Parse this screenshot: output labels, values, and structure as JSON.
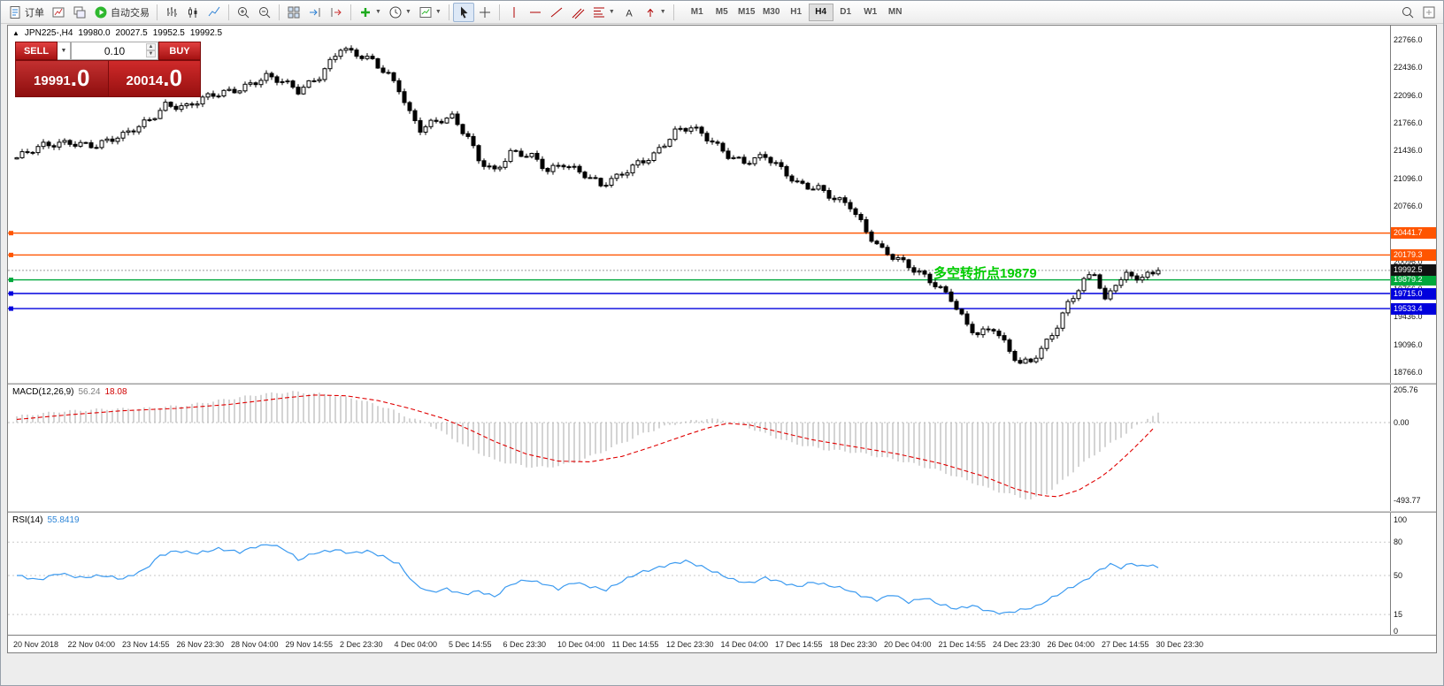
{
  "toolbar": {
    "items": [
      {
        "name": "new-order",
        "icon": "doc",
        "label": "订单"
      },
      {
        "name": "new-chart",
        "icon": "chartwin"
      },
      {
        "name": "profiles",
        "icon": "cascade"
      },
      {
        "name": "auto-trading",
        "icon": "play",
        "label": "自动交易"
      },
      {
        "sep": true
      },
      {
        "name": "bar-chart",
        "icon": "bars"
      },
      {
        "name": "candlestick-chart",
        "icon": "candles"
      },
      {
        "name": "line-chart",
        "icon": "linechart"
      },
      {
        "sep": true
      },
      {
        "name": "zoom-in",
        "icon": "zoomin"
      },
      {
        "name": "zoom-out",
        "icon": "zoomout"
      },
      {
        "sep": true
      },
      {
        "name": "tile-windows",
        "icon": "tile"
      },
      {
        "name": "auto-scroll",
        "icon": "autoscroll"
      },
      {
        "name": "chart-shift",
        "icon": "chartshift"
      },
      {
        "sep": true
      },
      {
        "name": "add-indicator",
        "icon": "plus",
        "dropdown": true
      },
      {
        "name": "periods",
        "icon": "clock",
        "dropdown": true
      },
      {
        "name": "templates",
        "icon": "template",
        "dropdown": true
      },
      {
        "sep": true
      },
      {
        "name": "cursor-tool",
        "icon": "cursor",
        "active": true
      },
      {
        "name": "crosshair-tool",
        "icon": "crosshair"
      },
      {
        "sep": true
      },
      {
        "name": "vertical-line-tool",
        "icon": "vline"
      },
      {
        "name": "horizontal-line-tool",
        "icon": "hline"
      },
      {
        "name": "trendline-tool",
        "icon": "trend"
      },
      {
        "name": "channel-tool",
        "icon": "channel"
      },
      {
        "name": "fibonacci-tool",
        "icon": "fib",
        "dropdown": true
      },
      {
        "name": "text-tool",
        "icon": "textA"
      },
      {
        "name": "arrows-tool",
        "icon": "arrow",
        "dropdown": true
      },
      {
        "sep": true
      }
    ],
    "timeframes": [
      {
        "label": "M1"
      },
      {
        "label": "M5"
      },
      {
        "label": "M15"
      },
      {
        "label": "M30"
      },
      {
        "label": "H1"
      },
      {
        "label": "H4",
        "active": true
      },
      {
        "label": "D1"
      },
      {
        "label": "W1"
      },
      {
        "label": "MN"
      }
    ],
    "right_items": [
      {
        "name": "search",
        "icon": "search"
      },
      {
        "name": "data-window",
        "icon": "expert"
      }
    ]
  },
  "chart": {
    "info": {
      "marker": "▲",
      "symbol": "JPN225-,H4",
      "open": "19980.0",
      "high": "20027.5",
      "low": "19952.5",
      "close": "19992.5"
    },
    "trade_panel": {
      "sell_label": "SELL",
      "buy_label": "BUY",
      "volume": "0.10",
      "sell_price": "19991",
      "sell_price_big": ".0",
      "buy_price": "20014",
      "buy_price_big": ".0",
      "spin_up": "▲",
      "spin_down": "▼",
      "dropdown": "▼"
    },
    "annotation": {
      "text": "多空转折点19879",
      "color": "#00cc00"
    },
    "axis_prices": [
      "22766.0",
      "22436.0",
      "22096.0",
      "21766.0",
      "21436.0",
      "21096.0",
      "20766.0",
      "20436.0",
      "20096.0",
      "19766.0",
      "19436.0",
      "19096.0",
      "18766.0"
    ],
    "price_lines": [
      {
        "name": "resistance-line-1",
        "price": 20441.7,
        "label": "20441.7",
        "color": "#ff5500"
      },
      {
        "name": "resistance-line-2",
        "price": 20179.3,
        "label": "20179.3",
        "color": "#ff5500"
      },
      {
        "name": "pivot-line",
        "price": 19879.2,
        "label": "19879.2",
        "color": "#00a83c"
      },
      {
        "name": "support-line-1",
        "price": 19715.0,
        "label": "19715.0",
        "color": "#0000dd"
      },
      {
        "name": "support-line-2",
        "price": 19533.4,
        "label": "19533.4",
        "color": "#0000dd"
      }
    ],
    "current_price": {
      "label": "19992.5",
      "value": 19992.5,
      "badge_color": "#111111"
    }
  },
  "macd": {
    "label": "MACD(12,26,9)",
    "value_main": "56.24",
    "value_signal": "18.08",
    "scale": [
      205.76,
      0.0,
      -493.77
    ],
    "scale_text": [
      "205.76",
      "0.00",
      "-493.77"
    ]
  },
  "rsi": {
    "label": "RSI(14)",
    "value": "55.8419",
    "scale": [
      100,
      80,
      50,
      15,
      0
    ],
    "scale_text": [
      "100",
      "80",
      "50",
      "15",
      "0"
    ],
    "levels": [
      80,
      50,
      15
    ]
  },
  "time_axis": {
    "labels": [
      "20 Nov 2018",
      "22 Nov 04:00",
      "23 Nov 14:55",
      "26 Nov 23:30",
      "28 Nov 04:00",
      "29 Nov 14:55",
      "2 Dec 23:30",
      "4 Dec 04:00",
      "5 Dec 14:55",
      "6 Dec 23:30",
      "10 Dec 04:00",
      "11 Dec 14:55",
      "12 Dec 23:30",
      "14 Dec 04:00",
      "17 Dec 14:55",
      "18 Dec 23:30",
      "20 Dec 04:00",
      "21 Dec 14:55",
      "24 Dec 23:30",
      "26 Dec 04:00",
      "27 Dec 14:55",
      "30 Dec 23:30"
    ]
  },
  "chart_data": {
    "type": "candlestick",
    "symbol": "JPN225",
    "timeframe": "H4",
    "last_ohlc": {
      "open": 19980.0,
      "high": 20027.5,
      "low": 19952.5,
      "close": 19992.5
    },
    "y_range": [
      18640,
      22940
    ],
    "candle_count": 216,
    "close_waypoints": [
      [
        0,
        21350
      ],
      [
        5,
        21480
      ],
      [
        10,
        21550
      ],
      [
        15,
        21500
      ],
      [
        20,
        21600
      ],
      [
        25,
        21820
      ],
      [
        28,
        22000
      ],
      [
        32,
        21950
      ],
      [
        37,
        22100
      ],
      [
        42,
        22200
      ],
      [
        47,
        22320
      ],
      [
        50,
        22250
      ],
      [
        53,
        22150
      ],
      [
        57,
        22350
      ],
      [
        61,
        22680
      ],
      [
        63,
        22600
      ],
      [
        67,
        22500
      ],
      [
        70,
        22350
      ],
      [
        72,
        22200
      ],
      [
        74,
        21900
      ],
      [
        76,
        21700
      ],
      [
        78,
        21750
      ],
      [
        82,
        21820
      ],
      [
        85,
        21600
      ],
      [
        87,
        21350
      ],
      [
        90,
        21200
      ],
      [
        93,
        21400
      ],
      [
        97,
        21350
      ],
      [
        100,
        21200
      ],
      [
        103,
        21300
      ],
      [
        107,
        21150
      ],
      [
        110,
        21000
      ],
      [
        113,
        21100
      ],
      [
        117,
        21300
      ],
      [
        120,
        21400
      ],
      [
        124,
        21650
      ],
      [
        127,
        21700
      ],
      [
        131,
        21550
      ],
      [
        134,
        21400
      ],
      [
        137,
        21300
      ],
      [
        141,
        21350
      ],
      [
        144,
        21200
      ],
      [
        147,
        21050
      ],
      [
        151,
        21000
      ],
      [
        154,
        20850
      ],
      [
        157,
        20750
      ],
      [
        160,
        20450
      ],
      [
        163,
        20250
      ],
      [
        166,
        20150
      ],
      [
        170,
        19950
      ],
      [
        173,
        19800
      ],
      [
        176,
        19650
      ],
      [
        179,
        19350
      ],
      [
        181,
        19250
      ],
      [
        184,
        19300
      ],
      [
        187,
        19000
      ],
      [
        189,
        18850
      ],
      [
        191,
        18900
      ],
      [
        193,
        19050
      ],
      [
        196,
        19350
      ],
      [
        198,
        19600
      ],
      [
        201,
        19850
      ],
      [
        203,
        19950
      ],
      [
        205,
        19600
      ],
      [
        207,
        19850
      ],
      [
        209,
        19950
      ],
      [
        212,
        19930
      ],
      [
        214,
        19960
      ],
      [
        215,
        19992.5
      ]
    ],
    "macd": {
      "range": [
        -493.77,
        205.76
      ],
      "histogram_waypoints": [
        [
          0,
          40
        ],
        [
          8,
          70
        ],
        [
          16,
          85
        ],
        [
          24,
          90
        ],
        [
          32,
          110
        ],
        [
          40,
          150
        ],
        [
          46,
          180
        ],
        [
          52,
          195
        ],
        [
          58,
          180
        ],
        [
          64,
          150
        ],
        [
          70,
          90
        ],
        [
          74,
          30
        ],
        [
          77,
          0
        ],
        [
          80,
          -60
        ],
        [
          85,
          -160
        ],
        [
          90,
          -240
        ],
        [
          96,
          -280
        ],
        [
          100,
          -285
        ],
        [
          105,
          -255
        ],
        [
          110,
          -190
        ],
        [
          114,
          -130
        ],
        [
          118,
          -70
        ],
        [
          122,
          -25
        ],
        [
          126,
          5
        ],
        [
          130,
          25
        ],
        [
          133,
          15
        ],
        [
          136,
          -5
        ],
        [
          140,
          -60
        ],
        [
          146,
          -130
        ],
        [
          152,
          -170
        ],
        [
          158,
          -190
        ],
        [
          163,
          -220
        ],
        [
          168,
          -255
        ],
        [
          173,
          -300
        ],
        [
          178,
          -355
        ],
        [
          183,
          -420
        ],
        [
          188,
          -465
        ],
        [
          191,
          -490
        ],
        [
          194,
          -450
        ],
        [
          197,
          -370
        ],
        [
          200,
          -280
        ],
        [
          204,
          -180
        ],
        [
          208,
          -90
        ],
        [
          211,
          -20
        ],
        [
          213,
          30
        ],
        [
          215,
          56.24
        ]
      ],
      "signal_waypoints": [
        [
          0,
          20
        ],
        [
          10,
          50
        ],
        [
          20,
          75
        ],
        [
          30,
          90
        ],
        [
          40,
          115
        ],
        [
          50,
          155
        ],
        [
          56,
          175
        ],
        [
          62,
          170
        ],
        [
          68,
          140
        ],
        [
          74,
          90
        ],
        [
          80,
          30
        ],
        [
          85,
          -40
        ],
        [
          90,
          -120
        ],
        [
          96,
          -200
        ],
        [
          102,
          -245
        ],
        [
          108,
          -250
        ],
        [
          114,
          -215
        ],
        [
          120,
          -150
        ],
        [
          126,
          -80
        ],
        [
          131,
          -25
        ],
        [
          134,
          -5
        ],
        [
          138,
          -15
        ],
        [
          143,
          -55
        ],
        [
          150,
          -110
        ],
        [
          158,
          -155
        ],
        [
          166,
          -200
        ],
        [
          174,
          -260
        ],
        [
          182,
          -340
        ],
        [
          188,
          -420
        ],
        [
          193,
          -465
        ],
        [
          196,
          -470
        ],
        [
          200,
          -430
        ],
        [
          205,
          -330
        ],
        [
          209,
          -210
        ],
        [
          212,
          -110
        ],
        [
          214,
          -40
        ],
        [
          215,
          18.08
        ]
      ]
    },
    "rsi": {
      "range": [
        0,
        100
      ],
      "waypoints": [
        [
          0,
          50
        ],
        [
          4,
          46
        ],
        [
          8,
          52
        ],
        [
          12,
          48
        ],
        [
          16,
          50
        ],
        [
          20,
          47
        ],
        [
          24,
          55
        ],
        [
          27,
          68
        ],
        [
          30,
          72
        ],
        [
          34,
          70
        ],
        [
          38,
          74
        ],
        [
          42,
          71
        ],
        [
          45,
          76
        ],
        [
          48,
          78
        ],
        [
          51,
          72
        ],
        [
          53,
          64
        ],
        [
          56,
          70
        ],
        [
          60,
          73
        ],
        [
          63,
          70
        ],
        [
          66,
          72
        ],
        [
          69,
          67
        ],
        [
          72,
          60
        ],
        [
          75,
          42
        ],
        [
          78,
          35
        ],
        [
          81,
          38
        ],
        [
          84,
          33
        ],
        [
          87,
          36
        ],
        [
          90,
          31
        ],
        [
          93,
          42
        ],
        [
          96,
          46
        ],
        [
          99,
          43
        ],
        [
          102,
          38
        ],
        [
          105,
          44
        ],
        [
          108,
          40
        ],
        [
          111,
          37
        ],
        [
          114,
          45
        ],
        [
          117,
          52
        ],
        [
          120,
          56
        ],
        [
          123,
          60
        ],
        [
          126,
          63
        ],
        [
          129,
          58
        ],
        [
          132,
          52
        ],
        [
          135,
          46
        ],
        [
          138,
          43
        ],
        [
          141,
          48
        ],
        [
          144,
          44
        ],
        [
          147,
          40
        ],
        [
          150,
          44
        ],
        [
          153,
          41
        ],
        [
          156,
          38
        ],
        [
          159,
          32
        ],
        [
          162,
          28
        ],
        [
          165,
          33
        ],
        [
          168,
          26
        ],
        [
          171,
          30
        ],
        [
          174,
          24
        ],
        [
          177,
          20
        ],
        [
          180,
          23
        ],
        [
          183,
          18
        ],
        [
          186,
          16
        ],
        [
          189,
          19
        ],
        [
          192,
          22
        ],
        [
          195,
          30
        ],
        [
          198,
          38
        ],
        [
          201,
          45
        ],
        [
          204,
          55
        ],
        [
          206,
          60
        ],
        [
          208,
          57
        ],
        [
          210,
          61
        ],
        [
          212,
          58
        ],
        [
          214,
          60
        ],
        [
          215,
          55.84
        ]
      ]
    },
    "levels": {
      "orange": [
        20441.7,
        20179.3
      ],
      "green": [
        19879.2
      ],
      "blue": [
        19715.0,
        19533.4
      ],
      "current": 19992.5
    }
  }
}
